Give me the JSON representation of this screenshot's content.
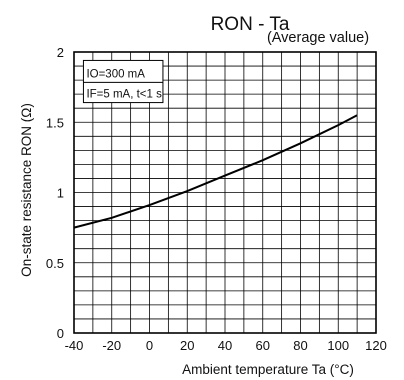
{
  "chart_data": {
    "type": "line",
    "title": "RON - Ta",
    "subtitle": "(Average value)",
    "xlabel": "Ambient temperature Ta (°C)",
    "ylabel": "On-state resistance RON (Ω)",
    "xlim": [
      -40,
      120
    ],
    "ylim": [
      0,
      2
    ],
    "xticks": [
      "-40",
      "-20",
      "0",
      "20",
      "40",
      "60",
      "80",
      "100",
      "120"
    ],
    "yticks": [
      "0",
      "0.5",
      "1",
      "1.5",
      "2"
    ],
    "grid": true,
    "conditions": [
      "IO=300 mA",
      "IF=5 mA, t<1 s"
    ],
    "series": [
      {
        "x": [
          -40,
          -20,
          0,
          20,
          40,
          60,
          80,
          100,
          110
        ],
        "y": [
          0.75,
          0.82,
          0.91,
          1.01,
          1.12,
          1.23,
          1.35,
          1.48,
          1.55
        ]
      }
    ]
  }
}
